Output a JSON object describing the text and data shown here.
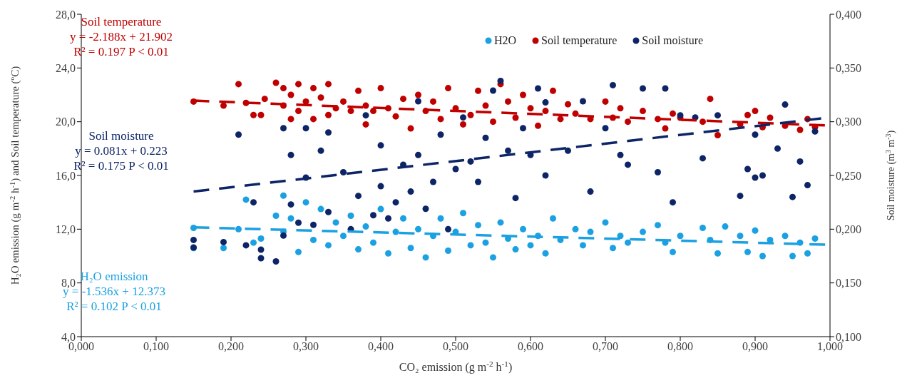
{
  "chart_data": {
    "type": "scatter",
    "xlabel": "CO₂ emission (g m$^{-2}$ h$^{-1}$)",
    "ylabel": "H₂O emission (g m$^{-2}$ h$^{-1}$) and Soil temperature (ºC)",
    "y2label": "Soil moisture (m$^{3}$ m$^{-3}$)",
    "xlim": [
      0,
      1
    ],
    "xticks": [
      {
        "value": 0,
        "label": "0,000"
      },
      {
        "value": 0.1,
        "label": "0,100"
      },
      {
        "value": 0.2,
        "label": "0,200"
      },
      {
        "value": 0.3,
        "label": "0,300"
      },
      {
        "value": 0.4,
        "label": "0,400"
      },
      {
        "value": 0.5,
        "label": "0,500"
      },
      {
        "value": 0.6,
        "label": "0,600"
      },
      {
        "value": 0.7,
        "label": "0,700"
      },
      {
        "value": 0.8,
        "label": "0,800"
      },
      {
        "value": 0.9,
        "label": "0,900"
      },
      {
        "value": 1,
        "label": "1,000"
      }
    ],
    "ylim": [
      4,
      28
    ],
    "yticks": [
      {
        "value": 4,
        "label": "4,0"
      },
      {
        "value": 8,
        "label": "8,0"
      },
      {
        "value": 12,
        "label": "12,0"
      },
      {
        "value": 16,
        "label": "16,0"
      },
      {
        "value": 20,
        "label": "20,0"
      },
      {
        "value": 24,
        "label": "24,0"
      },
      {
        "value": 28,
        "label": "28,0"
      }
    ],
    "y2lim": [
      0.1,
      0.4
    ],
    "y2ticks": [
      {
        "value": 0.1,
        "label": "0,100"
      },
      {
        "value": 0.15,
        "label": "0,150"
      },
      {
        "value": 0.2,
        "label": "0,200"
      },
      {
        "value": 0.25,
        "label": "0,250"
      },
      {
        "value": 0.3,
        "label": "0,300"
      },
      {
        "value": 0.35,
        "label": "0,350"
      },
      {
        "value": 0.4,
        "label": "0,400"
      }
    ],
    "grid": false,
    "legend": "top right",
    "marker": "circle",
    "annotations": [
      "Soil temperature",
      "y = -2.188x  + 21.902",
      "R² = 0.197  P < 0.01",
      "Soil moisture",
      "y = 0.081x  + 0.223",
      "R² = 0.175  P < 0.01",
      "H₂O emission",
      "y = -1.536x  + 12.373",
      "R² = 0.102  P < 0.01"
    ],
    "series": [
      {
        "name": "H2O",
        "color": "#1ba1e2",
        "x": [
          0.15,
          0.15,
          0.19,
          0.21,
          0.22,
          0.23,
          0.24,
          0.26,
          0.27,
          0.27,
          0.28,
          0.29,
          0.3,
          0.31,
          0.32,
          0.33,
          0.34,
          0.35,
          0.36,
          0.37,
          0.38,
          0.39,
          0.4,
          0.41,
          0.42,
          0.43,
          0.44,
          0.45,
          0.46,
          0.47,
          0.48,
          0.49,
          0.5,
          0.51,
          0.52,
          0.53,
          0.54,
          0.55,
          0.56,
          0.57,
          0.58,
          0.59,
          0.6,
          0.61,
          0.62,
          0.63,
          0.64,
          0.66,
          0.67,
          0.68,
          0.7,
          0.71,
          0.72,
          0.73,
          0.75,
          0.77,
          0.78,
          0.79,
          0.8,
          0.83,
          0.84,
          0.85,
          0.86,
          0.88,
          0.89,
          0.9,
          0.91,
          0.92,
          0.94,
          0.95,
          0.96,
          0.97,
          0.98
        ],
        "values": [
          12.1,
          10.6,
          10.6,
          12.0,
          14.2,
          11.0,
          11.3,
          13.0,
          14.5,
          11.8,
          12.8,
          10.3,
          14.0,
          11.2,
          13.5,
          10.8,
          12.5,
          11.5,
          13.0,
          10.5,
          12.2,
          11.0,
          13.5,
          10.2,
          11.8,
          12.8,
          10.6,
          12.0,
          9.9,
          11.5,
          12.8,
          10.4,
          11.8,
          13.2,
          10.8,
          12.3,
          11.0,
          9.9,
          12.5,
          11.3,
          10.5,
          12.0,
          10.8,
          11.5,
          10.2,
          12.8,
          11.2,
          12.0,
          10.8,
          11.8,
          12.5,
          10.6,
          11.5,
          11.0,
          11.8,
          12.3,
          11.0,
          10.3,
          11.5,
          12.1,
          11.2,
          10.2,
          12.2,
          11.5,
          10.3,
          11.9,
          10.0,
          11.2,
          11.5,
          10.0,
          11.0,
          10.2,
          11.3
        ]
      },
      {
        "name": "Soil temperature",
        "color": "#c00000",
        "x": [
          0.15,
          0.19,
          0.21,
          0.22,
          0.23,
          0.24,
          0.245,
          0.26,
          0.27,
          0.27,
          0.28,
          0.28,
          0.29,
          0.29,
          0.3,
          0.31,
          0.31,
          0.32,
          0.33,
          0.33,
          0.34,
          0.35,
          0.36,
          0.37,
          0.38,
          0.38,
          0.39,
          0.4,
          0.41,
          0.42,
          0.43,
          0.44,
          0.45,
          0.46,
          0.47,
          0.48,
          0.49,
          0.5,
          0.51,
          0.52,
          0.53,
          0.54,
          0.55,
          0.56,
          0.57,
          0.58,
          0.59,
          0.6,
          0.61,
          0.62,
          0.63,
          0.64,
          0.65,
          0.66,
          0.68,
          0.7,
          0.71,
          0.72,
          0.73,
          0.75,
          0.77,
          0.78,
          0.79,
          0.8,
          0.83,
          0.84,
          0.85,
          0.88,
          0.89,
          0.9,
          0.91,
          0.92,
          0.94,
          0.96,
          0.97,
          0.98
        ],
        "values": [
          21.5,
          21.2,
          22.8,
          21.4,
          20.5,
          20.5,
          21.7,
          22.9,
          22.5,
          21.2,
          20.2,
          22.0,
          22.8,
          20.8,
          21.5,
          22.5,
          20.2,
          21.8,
          20.5,
          22.8,
          21.0,
          21.5,
          20.8,
          22.3,
          21.2,
          19.8,
          20.8,
          22.5,
          21.0,
          20.4,
          21.7,
          19.5,
          22.0,
          20.8,
          21.5,
          20.2,
          22.5,
          21.0,
          19.8,
          20.5,
          22.3,
          21.2,
          20.0,
          22.8,
          21.5,
          20.3,
          22.0,
          21.0,
          19.7,
          20.8,
          22.3,
          20.2,
          21.3,
          20.6,
          20.2,
          21.5,
          20.3,
          21.0,
          20.0,
          20.8,
          20.2,
          19.5,
          20.6,
          20.3,
          20.0,
          21.7,
          19.0,
          19.8,
          20.5,
          20.8,
          19.6,
          20.3,
          19.7,
          19.4,
          20.2,
          19.6
        ]
      },
      {
        "name": "Soil moisture",
        "color": "#0d2566",
        "axis": "y2",
        "x": [
          0.15,
          0.15,
          0.19,
          0.21,
          0.22,
          0.23,
          0.24,
          0.24,
          0.26,
          0.27,
          0.27,
          0.28,
          0.28,
          0.29,
          0.3,
          0.3,
          0.31,
          0.32,
          0.33,
          0.33,
          0.35,
          0.36,
          0.37,
          0.38,
          0.39,
          0.4,
          0.4,
          0.41,
          0.42,
          0.43,
          0.44,
          0.45,
          0.45,
          0.46,
          0.47,
          0.48,
          0.49,
          0.5,
          0.51,
          0.52,
          0.53,
          0.54,
          0.55,
          0.56,
          0.57,
          0.58,
          0.59,
          0.6,
          0.61,
          0.62,
          0.62,
          0.65,
          0.67,
          0.68,
          0.7,
          0.71,
          0.72,
          0.73,
          0.75,
          0.77,
          0.78,
          0.79,
          0.8,
          0.82,
          0.83,
          0.85,
          0.88,
          0.89,
          0.9,
          0.9,
          0.91,
          0.93,
          0.94,
          0.95,
          0.96,
          0.97,
          0.98
        ],
        "values": [
          0.19,
          0.183,
          0.188,
          0.288,
          0.185,
          0.225,
          0.173,
          0.181,
          0.17,
          0.194,
          0.294,
          0.223,
          0.269,
          0.206,
          0.248,
          0.294,
          0.204,
          0.273,
          0.216,
          0.29,
          0.253,
          0.2,
          0.231,
          0.306,
          0.213,
          0.24,
          0.278,
          0.21,
          0.225,
          0.26,
          0.235,
          0.269,
          0.319,
          0.219,
          0.244,
          0.288,
          0.2,
          0.256,
          0.304,
          0.263,
          0.244,
          0.285,
          0.329,
          0.338,
          0.273,
          0.229,
          0.294,
          0.269,
          0.331,
          0.25,
          0.318,
          0.273,
          0.319,
          0.235,
          0.294,
          0.334,
          0.269,
          0.26,
          0.331,
          0.253,
          0.331,
          0.225,
          0.306,
          0.304,
          0.266,
          0.306,
          0.231,
          0.256,
          0.248,
          0.288,
          0.25,
          0.275,
          0.316,
          0.23,
          0.263,
          0.241,
          0.291
        ]
      },
      {
        "type": "line",
        "color": "#1ba1e2",
        "line_style": "dashed",
        "marker": "none",
        "x": [
          0.15,
          1
        ],
        "values": [
          12.14,
          10.84
        ]
      },
      {
        "type": "line",
        "color": "#c00000",
        "line_style": "dashed",
        "marker": "none",
        "x": [
          0.15,
          1
        ],
        "values": [
          21.57,
          19.71
        ]
      },
      {
        "type": "line",
        "color": "#0d2566",
        "line_style": "dashed",
        "marker": "none",
        "axis": "y2",
        "x": [
          0.15,
          1
        ],
        "values": [
          0.235,
          0.304
        ]
      }
    ]
  }
}
